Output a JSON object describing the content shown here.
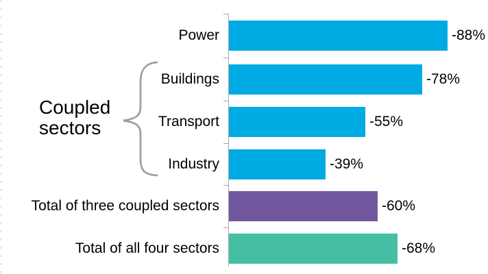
{
  "chart_data": {
    "type": "bar",
    "orientation": "horizontal",
    "title": "",
    "categories": [
      "Power",
      "Buildings",
      "Transport",
      "Industry",
      "Total of three coupled sectors",
      "Total of all four sectors"
    ],
    "values": [
      -88,
      -78,
      -55,
      -39,
      -60,
      -68
    ],
    "value_labels": [
      "-88%",
      "-78%",
      "-55%",
      "-39%",
      "-60%",
      "-68%"
    ],
    "bar_colors": [
      "#00AAE2",
      "#00AAE2",
      "#00AAE2",
      "#00AAE2",
      "#70579E",
      "#45BFA4"
    ],
    "unit": "%",
    "xlim": [
      0,
      100
    ],
    "grid": false,
    "legend": false,
    "value_label_position": "right-of-bar",
    "annotation": {
      "label": "Coupled sectors",
      "grouped_categories": [
        "Buildings",
        "Transport",
        "Industry"
      ]
    }
  },
  "style": {
    "axis_color": "#A6A6A6",
    "brace_color": "#9E9E9E",
    "text_color": "#000000",
    "edge_dash_color": "#C4C4C4",
    "background": "#FFFFFF"
  }
}
